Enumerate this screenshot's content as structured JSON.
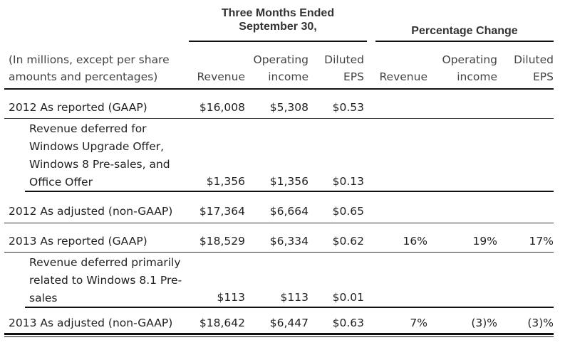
{
  "header": {
    "group1_line1": "Three Months Ended",
    "group1_line2": "September 30,",
    "group2": "Percentage Change"
  },
  "columns": {
    "label_line1": "(In millions, except per share",
    "label_line2": "amounts and percentages)",
    "revenue": "Revenue",
    "op_line1": "Operating",
    "op_line2": "income",
    "eps_line1": "Diluted",
    "eps_line2": "EPS",
    "pct_revenue": "Revenue",
    "pct_op_line1": "Operating",
    "pct_op_line2": "income",
    "pct_eps_line1": "Diluted",
    "pct_eps_line2": "EPS"
  },
  "rows": [
    {
      "label": [
        "2012 As reported (GAAP)"
      ],
      "revenue": "$16,008",
      "operating_income": "$5,308",
      "diluted_eps": "$0.53",
      "pct_revenue": "",
      "pct_operating_income": "",
      "pct_diluted_eps": ""
    },
    {
      "label": [
        "Revenue deferred for",
        "Windows Upgrade Offer,",
        "Windows 8 Pre-sales, and",
        "Office Offer"
      ],
      "revenue": "$1,356",
      "operating_income": "$1,356",
      "diluted_eps": "$0.13",
      "pct_revenue": "",
      "pct_operating_income": "",
      "pct_diluted_eps": ""
    },
    {
      "label": [
        "2012 As adjusted (non-GAAP)"
      ],
      "revenue": "$17,364",
      "operating_income": "$6,664",
      "diluted_eps": "$0.65",
      "pct_revenue": "",
      "pct_operating_income": "",
      "pct_diluted_eps": ""
    },
    {
      "label": [
        "2013 As reported (GAAP)"
      ],
      "revenue": "$18,529",
      "operating_income": "$6,334",
      "diluted_eps": "$0.62",
      "pct_revenue": "16%",
      "pct_operating_income": "19%",
      "pct_diluted_eps": "17%"
    },
    {
      "label": [
        "Revenue deferred primarily",
        "related to Windows 8.1 Pre-",
        "sales"
      ],
      "revenue": "$113",
      "operating_income": "$113",
      "diluted_eps": "$0.01",
      "pct_revenue": "",
      "pct_operating_income": "",
      "pct_diluted_eps": ""
    },
    {
      "label": [
        "2013 As adjusted (non-GAAP)"
      ],
      "revenue": "$18,642",
      "operating_income": "$6,447",
      "diluted_eps": "$0.63",
      "pct_revenue": "7%",
      "pct_operating_income": "(3)%",
      "pct_diluted_eps": "(3)%"
    }
  ]
}
